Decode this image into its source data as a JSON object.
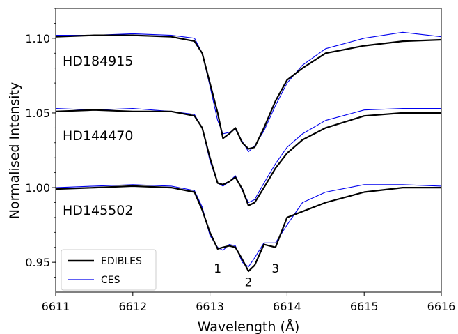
{
  "chart_data": {
    "type": "line",
    "xlabel": "Wavelength (Å)",
    "ylabel": "Normalised Intensity",
    "xlim": [
      6611,
      6616
    ],
    "ylim": [
      0.93,
      1.12
    ],
    "xticks": [
      "6611",
      "6612",
      "6613",
      "6614",
      "6615",
      "6616"
    ],
    "yticks": [
      "0.95",
      "1.00",
      "1.05",
      "1.10"
    ],
    "grid": false,
    "legend_position": "lower-left",
    "legend": [
      {
        "name": "EDIBLES",
        "color": "#000000"
      },
      {
        "name": "CES",
        "color": "#0000ee"
      }
    ],
    "star_labels": [
      "HD184915",
      "HD144470",
      "HD145502"
    ],
    "peak_labels": [
      {
        "text": "1",
        "x": 6613.1,
        "y": 0.943
      },
      {
        "text": "2",
        "x": 6613.5,
        "y": 0.934
      },
      {
        "text": "3",
        "x": 6613.85,
        "y": 0.943
      }
    ],
    "series": [
      {
        "name": "EDIBLES",
        "star": "HD184915",
        "color": "#000000",
        "x": [
          6611.0,
          6611.5,
          6612.0,
          6612.5,
          6612.8,
          6612.9,
          6613.0,
          6613.1,
          6613.17,
          6613.25,
          6613.33,
          6613.42,
          6613.5,
          6613.58,
          6613.7,
          6613.85,
          6614.0,
          6614.2,
          6614.5,
          6615.0,
          6615.5,
          6616.0
        ],
        "y": [
          1.101,
          1.102,
          1.102,
          1.101,
          1.098,
          1.09,
          1.07,
          1.05,
          1.033,
          1.036,
          1.04,
          1.03,
          1.026,
          1.027,
          1.04,
          1.058,
          1.072,
          1.08,
          1.09,
          1.095,
          1.098,
          1.099
        ]
      },
      {
        "name": "CES",
        "star": "HD184915",
        "color": "#0000ee",
        "x": [
          6611.0,
          6611.5,
          6612.0,
          6612.5,
          6612.8,
          6612.9,
          6613.0,
          6613.1,
          6613.17,
          6613.25,
          6613.33,
          6613.42,
          6613.5,
          6613.58,
          6613.7,
          6613.85,
          6614.0,
          6614.2,
          6614.5,
          6615.0,
          6615.5,
          6616.0
        ],
        "y": [
          1.102,
          1.102,
          1.103,
          1.102,
          1.1,
          1.09,
          1.068,
          1.045,
          1.036,
          1.037,
          1.039,
          1.031,
          1.024,
          1.028,
          1.038,
          1.055,
          1.07,
          1.082,
          1.093,
          1.1,
          1.104,
          1.101
        ]
      },
      {
        "name": "EDIBLES",
        "star": "HD144470",
        "color": "#000000",
        "x": [
          6611.0,
          6611.5,
          6612.0,
          6612.5,
          6612.8,
          6612.9,
          6613.0,
          6613.1,
          6613.17,
          6613.25,
          6613.33,
          6613.42,
          6613.5,
          6613.58,
          6613.7,
          6613.85,
          6614.0,
          6614.2,
          6614.5,
          6615.0,
          6615.5,
          6616.0
        ],
        "y": [
          1.051,
          1.052,
          1.051,
          1.051,
          1.048,
          1.04,
          1.02,
          1.003,
          1.002,
          1.004,
          1.007,
          0.999,
          0.988,
          0.99,
          1.0,
          1.013,
          1.023,
          1.032,
          1.04,
          1.048,
          1.05,
          1.05
        ]
      },
      {
        "name": "CES",
        "star": "HD144470",
        "color": "#0000ee",
        "x": [
          6611.0,
          6611.5,
          6612.0,
          6612.5,
          6612.8,
          6612.9,
          6613.0,
          6613.1,
          6613.17,
          6613.25,
          6613.33,
          6613.42,
          6613.5,
          6613.58,
          6613.7,
          6613.85,
          6614.0,
          6614.2,
          6614.5,
          6615.0,
          6615.5,
          6616.0
        ],
        "y": [
          1.053,
          1.052,
          1.053,
          1.051,
          1.049,
          1.04,
          1.018,
          1.003,
          1.001,
          1.004,
          1.008,
          0.998,
          0.99,
          0.992,
          1.003,
          1.016,
          1.027,
          1.036,
          1.045,
          1.052,
          1.053,
          1.053
        ]
      },
      {
        "name": "EDIBLES",
        "star": "HD145502",
        "color": "#000000",
        "x": [
          6611.0,
          6611.5,
          6612.0,
          6612.5,
          6612.8,
          6612.9,
          6613.0,
          6613.1,
          6613.17,
          6613.25,
          6613.33,
          6613.42,
          6613.5,
          6613.58,
          6613.7,
          6613.85,
          6614.0,
          6614.2,
          6614.5,
          6615.0,
          6615.5,
          6616.0
        ],
        "y": [
          0.999,
          1.0,
          1.001,
          1.0,
          0.997,
          0.985,
          0.97,
          0.959,
          0.96,
          0.961,
          0.96,
          0.952,
          0.944,
          0.948,
          0.962,
          0.96,
          0.98,
          0.984,
          0.99,
          0.997,
          1.0,
          1.0
        ]
      },
      {
        "name": "CES",
        "star": "HD145502",
        "color": "#0000ee",
        "x": [
          6611.0,
          6611.5,
          6612.0,
          6612.5,
          6612.8,
          6612.9,
          6613.0,
          6613.1,
          6613.17,
          6613.25,
          6613.33,
          6613.42,
          6613.5,
          6613.58,
          6613.7,
          6613.85,
          6614.0,
          6614.2,
          6614.5,
          6615.0,
          6615.5,
          6616.0
        ],
        "y": [
          1.0,
          1.001,
          1.002,
          1.001,
          0.998,
          0.987,
          0.968,
          0.96,
          0.958,
          0.962,
          0.961,
          0.95,
          0.947,
          0.953,
          0.963,
          0.963,
          0.975,
          0.99,
          0.997,
          1.002,
          1.002,
          1.001
        ]
      }
    ]
  }
}
